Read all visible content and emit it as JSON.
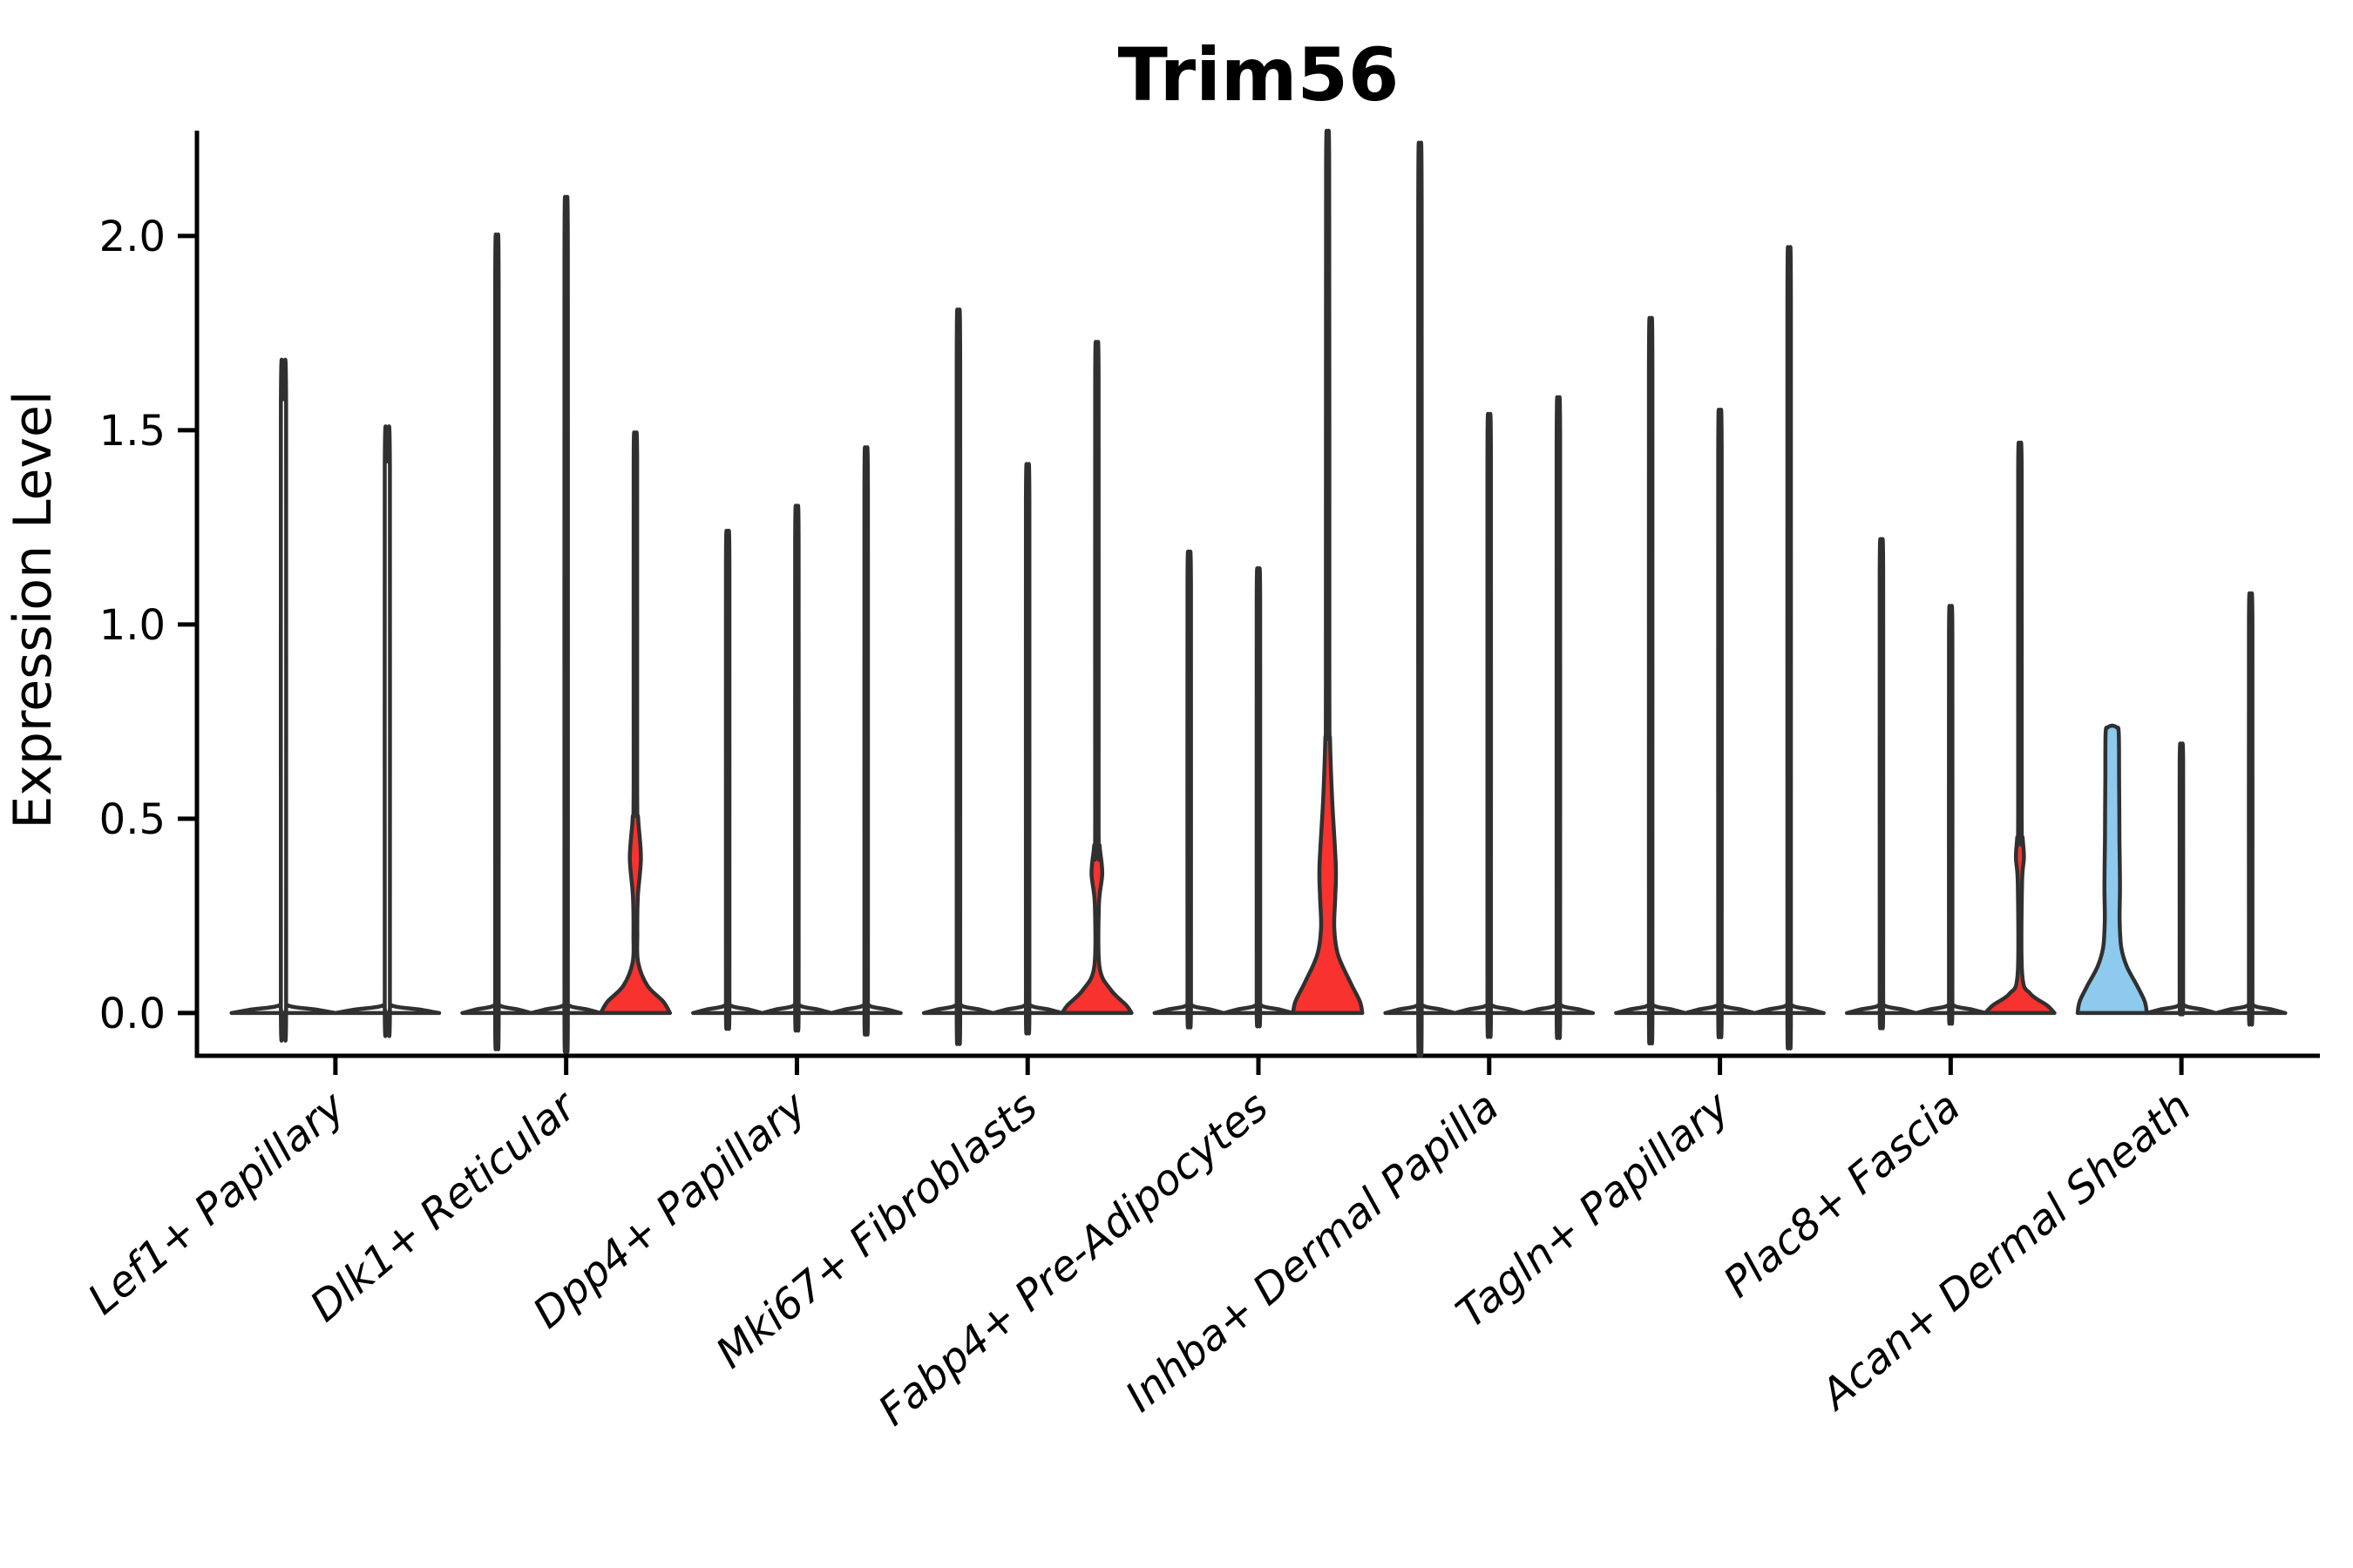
{
  "title": "Trim56",
  "chart_data": {
    "type": "violin",
    "title": "Trim56",
    "ylabel": "Expression Level",
    "xlabel": "",
    "yticks": [
      0.0,
      0.5,
      1.0,
      1.5,
      2.0
    ],
    "ytick_labels": [
      "0.0",
      "0.5",
      "1.0",
      "1.5",
      "2.0"
    ],
    "ylim": [
      -0.11,
      2.271
    ],
    "xlim": [
      -0.6,
      8.6
    ],
    "grid": false,
    "legend": "none",
    "x_labels_rotation_deg": 40,
    "x_labels_style": "italic",
    "categories": [
      "Lef1+ Papillary",
      "Dlk1+ Reticular",
      "Dpp4+ Papillary",
      "Mki67+ Fibroblasts",
      "Fabp4+ Pre-Adipocytes",
      "Inhba+ Dermal Papilla",
      "Tagln+ Papillary",
      "Plac8+ Fascia",
      "Acan+ Dermal Sheath"
    ],
    "colors": {
      "red": "#F8322E",
      "blue": "#8EC9EE",
      "outline": "#303030",
      "axis": "#000000"
    },
    "style": {
      "spine_width": 5,
      "violin_stroke": 4.5,
      "tick_len": 22
    },
    "spike_template": {
      "tip_drop": 0.015,
      "w": 0.05,
      "neck_bottom": 0.05,
      "base": [
        [
          0.02,
          0.08
        ],
        [
          0.009,
          0.62
        ],
        [
          0,
          1
        ]
      ]
    },
    "groups": [
      {
        "category": "Lef1+ Papillary",
        "violins": [
          {
            "max": 1.58
          },
          {
            "max": 1.42
          }
        ]
      },
      {
        "category": "Dlk1+ Reticular",
        "violins": [
          {
            "max": 1.88
          },
          {
            "max": 1.97
          },
          {
            "max": 1.44,
            "fill": "red",
            "profile": [
              [
                1.44,
                0
              ],
              [
                1.43,
                0.05
              ],
              [
                0.6,
                0.05
              ],
              [
                0.5,
                0.08
              ],
              [
                0.4,
                0.16
              ],
              [
                0.3,
                0.07
              ],
              [
                0.2,
                0.055
              ],
              [
                0.13,
                0.08
              ],
              [
                0.07,
                0.35
              ],
              [
                0.03,
                0.8
              ],
              [
                0,
                1
              ]
            ]
          }
        ]
      },
      {
        "category": "Dpp4+ Papillary",
        "violins": [
          {
            "max": 1.17
          },
          {
            "max": 1.23
          },
          {
            "max": 1.37
          }
        ]
      },
      {
        "category": "Mki67+ Fibroblasts",
        "violins": [
          {
            "max": 1.7
          },
          {
            "max": 1.33
          },
          {
            "max": 1.65,
            "fill": "red",
            "profile": [
              [
                1.65,
                0
              ],
              [
                1.64,
                0.05
              ],
              [
                0.5,
                0.05
              ],
              [
                0.43,
                0.08
              ],
              [
                0.36,
                0.155
              ],
              [
                0.28,
                0.06
              ],
              [
                0.12,
                0.075
              ],
              [
                0.06,
                0.4
              ],
              [
                0.02,
                0.85
              ],
              [
                0,
                1
              ]
            ]
          }
        ]
      },
      {
        "category": "Fabp4+ Pre-Adipocytes",
        "violins": [
          {
            "max": 1.12
          },
          {
            "max": 1.08
          },
          {
            "max": 2.18,
            "fill": "red",
            "profile": [
              [
                2.18,
                0
              ],
              [
                2.17,
                0.045
              ],
              [
                0.85,
                0.05
              ],
              [
                0.7,
                0.07
              ],
              [
                0.55,
                0.13
              ],
              [
                0.38,
                0.235
              ],
              [
                0.3,
                0.22
              ],
              [
                0.22,
                0.19
              ],
              [
                0.15,
                0.3
              ],
              [
                0.08,
                0.65
              ],
              [
                0.03,
                0.93
              ],
              [
                0,
                1
              ]
            ]
          }
        ]
      },
      {
        "category": "Inhba+ Dermal Papilla",
        "violins": [
          {
            "max": 2.1
          },
          {
            "max": 1.45
          },
          {
            "max": 1.49
          }
        ]
      },
      {
        "category": "Tagln+ Papillary",
        "violins": [
          {
            "max": 1.68
          },
          {
            "max": 1.46
          },
          {
            "max": 1.85
          }
        ]
      },
      {
        "category": "Plac8+ Fascia",
        "violins": [
          {
            "max": 1.15
          },
          {
            "max": 0.99
          },
          {
            "max": 1.41,
            "fill": "red",
            "profile": [
              [
                1.41,
                0
              ],
              [
                1.4,
                0.05
              ],
              [
                0.52,
                0.05
              ],
              [
                0.45,
                0.08
              ],
              [
                0.4,
                0.115
              ],
              [
                0.33,
                0.06
              ],
              [
                0.1,
                0.065
              ],
              [
                0.05,
                0.3
              ],
              [
                0.02,
                0.78
              ],
              [
                0,
                1
              ]
            ]
          }
        ]
      },
      {
        "category": "Acan+ Dermal Sheath",
        "violins": [
          {
            "max": 0.74,
            "fill": "blue",
            "profile": [
              [
                0.74,
                0
              ],
              [
                0.735,
                0.13
              ],
              [
                0.72,
                0.19
              ],
              [
                0.6,
                0.2
              ],
              [
                0.45,
                0.21
              ],
              [
                0.33,
                0.225
              ],
              [
                0.24,
                0.215
              ],
              [
                0.17,
                0.26
              ],
              [
                0.12,
                0.42
              ],
              [
                0.07,
                0.72
              ],
              [
                0.03,
                0.94
              ],
              [
                0,
                1
              ]
            ]
          },
          {
            "max": 0.66
          },
          {
            "max": 1.02
          }
        ]
      }
    ]
  }
}
